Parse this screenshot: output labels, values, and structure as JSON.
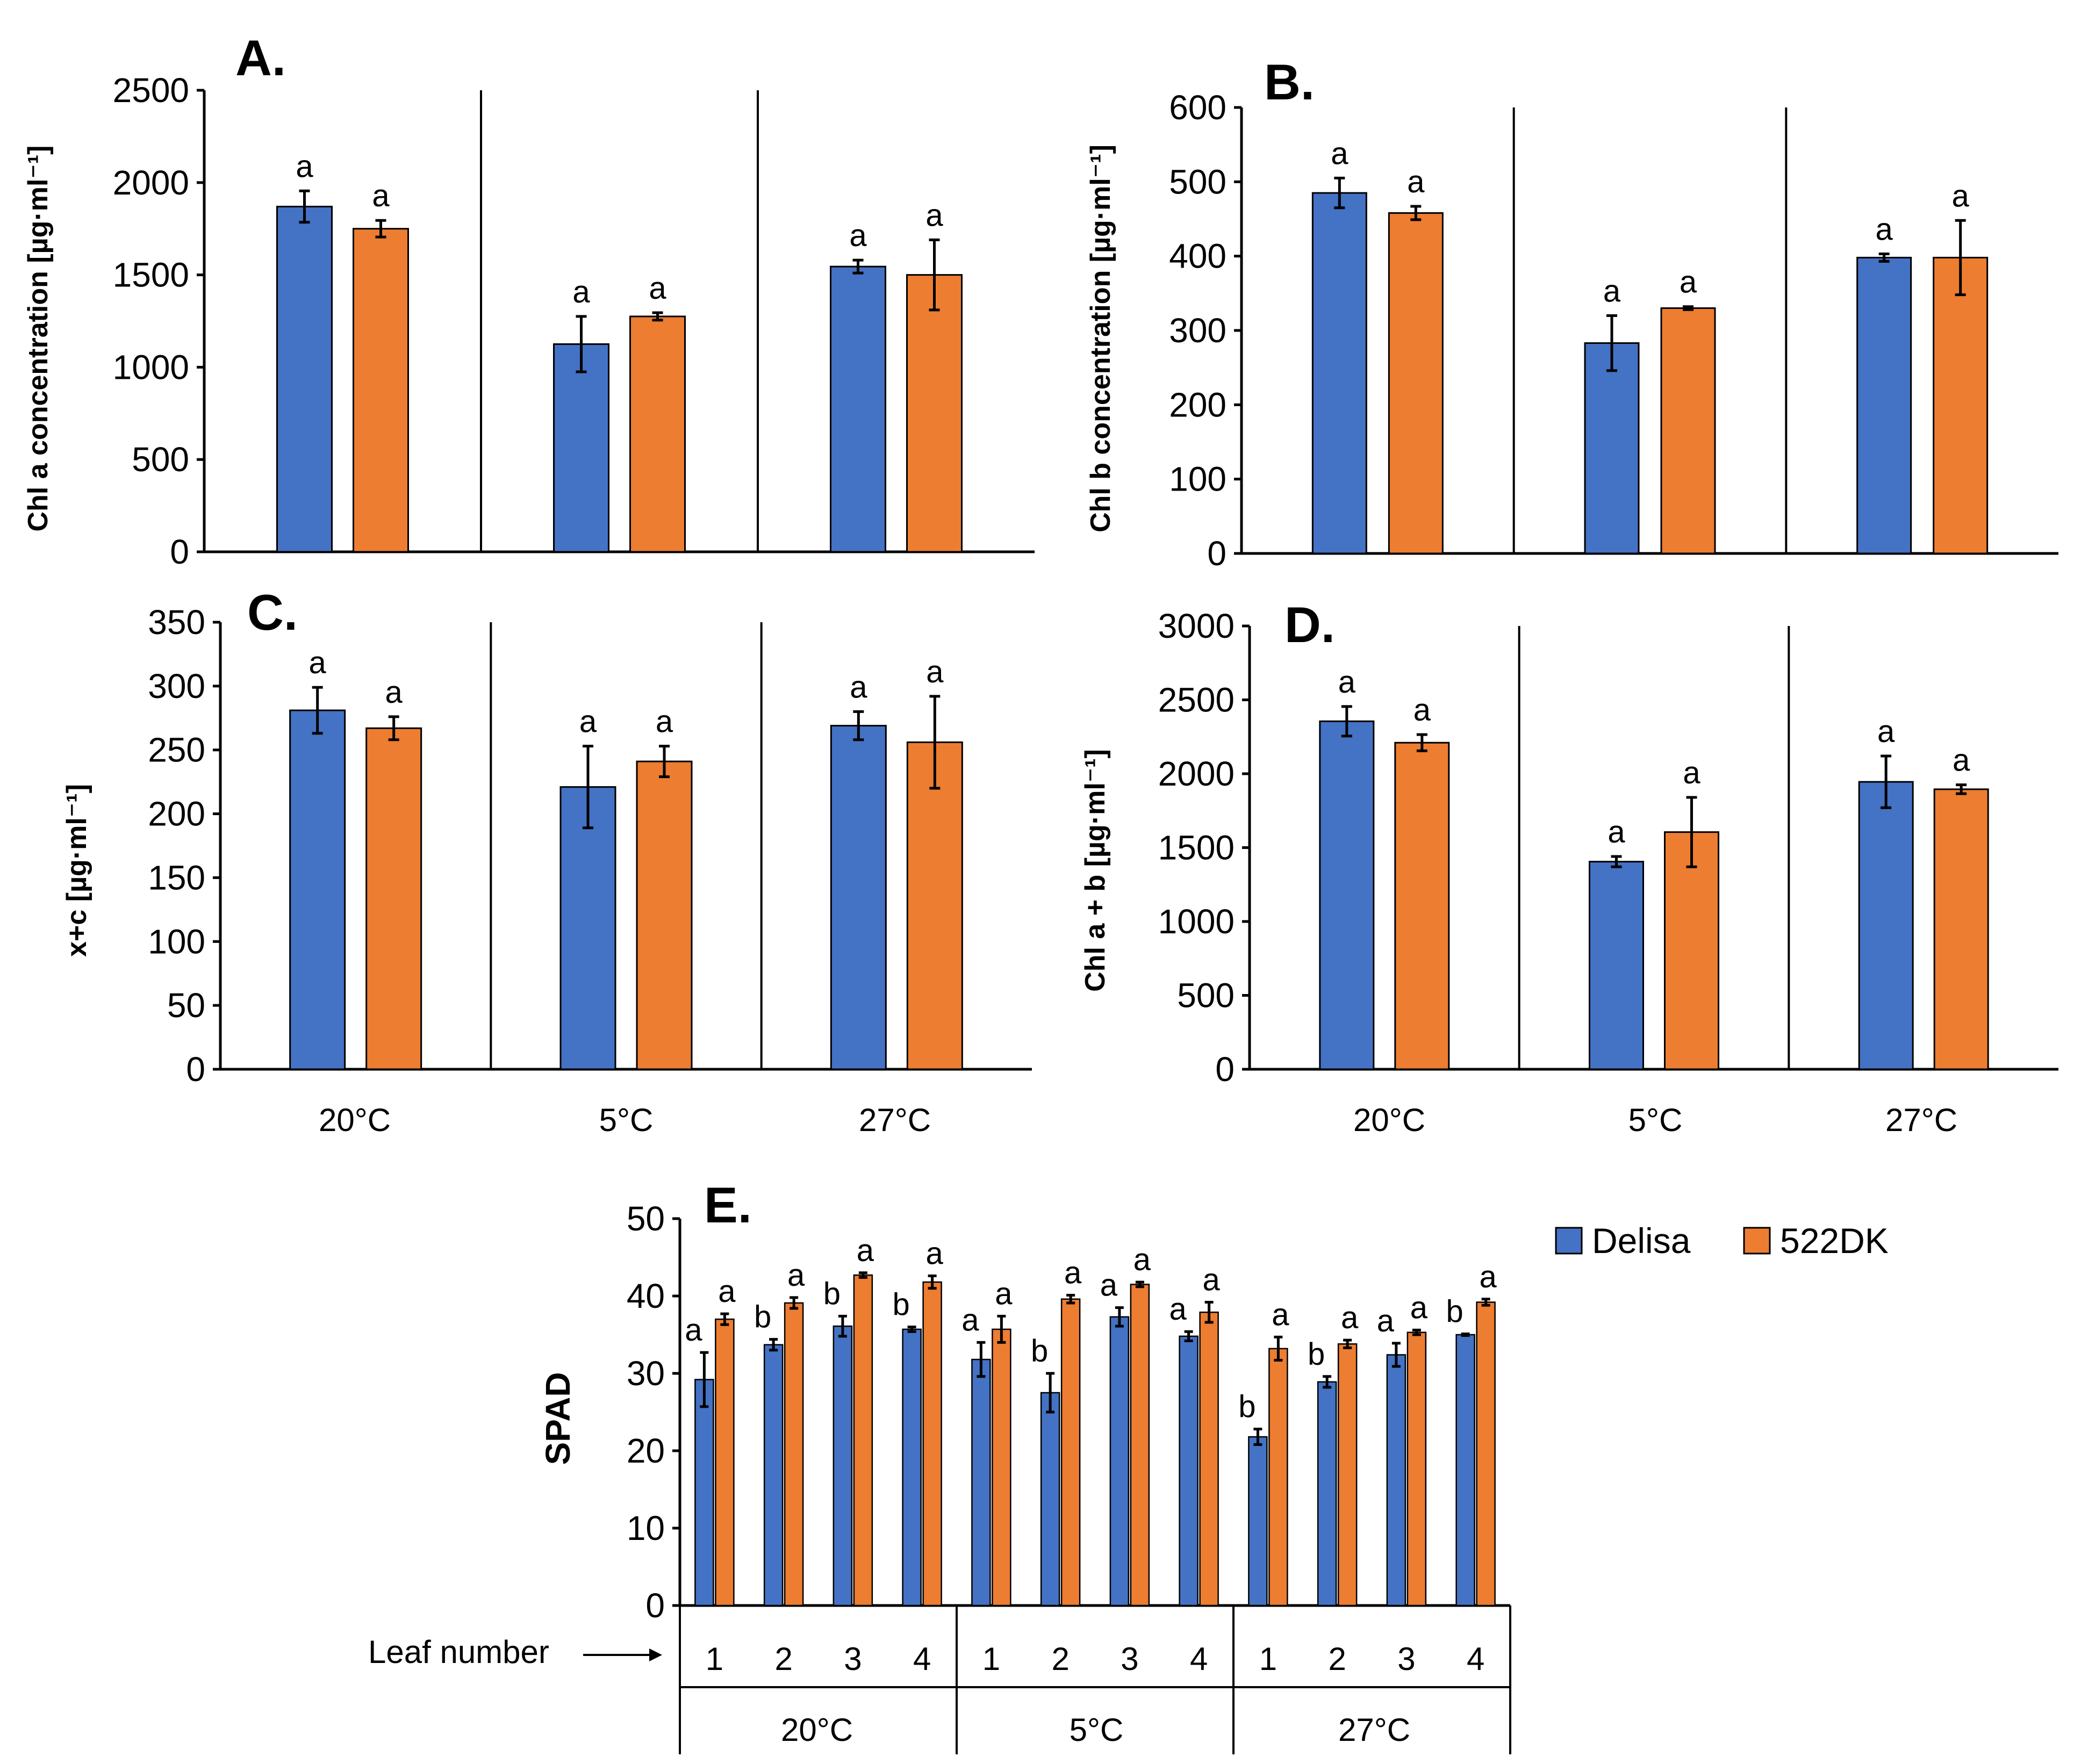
{
  "colors": {
    "delisa": "#4472C4",
    "dk522": "#ED7D31"
  },
  "legend": {
    "series": [
      "Delisa",
      "522DK"
    ]
  },
  "temps": [
    "20°C",
    "5°C",
    "27°C"
  ],
  "e_extra": {
    "leaf_caption": "Leaf number",
    "leaves": [
      "1",
      "2",
      "3",
      "4"
    ]
  },
  "chart_data": [
    {
      "id": "A",
      "label": "A.",
      "type": "bar",
      "ylabel": "Chl a concentration [µg·ml⁻¹]",
      "ylim": [
        0,
        2500
      ],
      "yticks": [
        0,
        500,
        1000,
        1500,
        2000,
        2500
      ],
      "categories": [
        "20°C",
        "5°C",
        "27°C"
      ],
      "series": [
        {
          "name": "Delisa",
          "values": [
            1870,
            1125,
            1545
          ],
          "errors": [
            85,
            150,
            35
          ],
          "letters": [
            "a",
            "a",
            "a"
          ]
        },
        {
          "name": "522DK",
          "values": [
            1750,
            1275,
            1500
          ],
          "errors": [
            45,
            20,
            190
          ],
          "letters": [
            "a",
            "a",
            "a"
          ]
        }
      ]
    },
    {
      "id": "B",
      "label": "B.",
      "type": "bar",
      "ylabel": "Chl b concentration [µg·ml⁻¹]",
      "ylim": [
        0,
        600
      ],
      "yticks": [
        0,
        100,
        200,
        300,
        400,
        500,
        600
      ],
      "categories": [
        "20°C",
        "5°C",
        "27°C"
      ],
      "series": [
        {
          "name": "Delisa",
          "values": [
            485,
            283,
            398
          ],
          "errors": [
            20,
            37,
            5
          ],
          "letters": [
            "a",
            "a",
            "a"
          ]
        },
        {
          "name": "522DK",
          "values": [
            458,
            330,
            398
          ],
          "errors": [
            9,
            2,
            50
          ],
          "letters": [
            "a",
            "a",
            "a"
          ]
        }
      ]
    },
    {
      "id": "C",
      "label": "C.",
      "type": "bar",
      "ylabel": "x+c [µg·ml⁻¹]",
      "ylim": [
        0,
        350
      ],
      "yticks": [
        0,
        50,
        100,
        150,
        200,
        250,
        300,
        350
      ],
      "categories": [
        "20°C",
        "5°C",
        "27°C"
      ],
      "series": [
        {
          "name": "Delisa",
          "values": [
            281,
            221,
            269
          ],
          "errors": [
            18,
            32,
            11
          ],
          "letters": [
            "a",
            "a",
            "a"
          ]
        },
        {
          "name": "522DK",
          "values": [
            267,
            241,
            256
          ],
          "errors": [
            9,
            12,
            36
          ],
          "letters": [
            "a",
            "a",
            "a"
          ]
        }
      ]
    },
    {
      "id": "D",
      "label": "D.",
      "type": "bar",
      "ylabel": "Chl a + b [µg·ml⁻¹]",
      "ylim": [
        0,
        3000
      ],
      "yticks": [
        0,
        500,
        1000,
        1500,
        2000,
        2500,
        3000
      ],
      "categories": [
        "20°C",
        "5°C",
        "27°C"
      ],
      "series": [
        {
          "name": "Delisa",
          "values": [
            2355,
            1405,
            1945
          ],
          "errors": [
            100,
            35,
            175
          ],
          "letters": [
            "a",
            "a",
            "a"
          ]
        },
        {
          "name": "522DK",
          "values": [
            2210,
            1605,
            1895
          ],
          "errors": [
            55,
            235,
            30
          ],
          "letters": [
            "a",
            "a",
            "a"
          ]
        }
      ]
    },
    {
      "id": "E",
      "label": "E.",
      "type": "bar",
      "ylabel": "SPAD",
      "ylim": [
        0,
        50
      ],
      "yticks": [
        0,
        10,
        20,
        30,
        40,
        50
      ],
      "groups": [
        "20°C",
        "5°C",
        "27°C"
      ],
      "categories": [
        "1",
        "2",
        "3",
        "4",
        "1",
        "2",
        "3",
        "4",
        "1",
        "2",
        "3",
        "4"
      ],
      "series": [
        {
          "name": "Delisa",
          "values": [
            29.2,
            33.7,
            36.1,
            35.7,
            31.8,
            27.5,
            37.3,
            34.8,
            21.8,
            28.9,
            32.4,
            35.0
          ],
          "errors": [
            3.5,
            0.7,
            1.3,
            0.3,
            2.2,
            2.5,
            1.2,
            0.6,
            1.0,
            0.7,
            1.5,
            0.1
          ],
          "letters": [
            "a",
            "b",
            "b",
            "b",
            "a",
            "b",
            "a",
            "a",
            "b",
            "b",
            "a",
            "b"
          ]
        },
        {
          "name": "522DK",
          "values": [
            37.0,
            39.1,
            42.7,
            41.8,
            35.7,
            39.6,
            41.5,
            37.9,
            33.2,
            33.8,
            35.3,
            39.2
          ],
          "errors": [
            0.7,
            0.7,
            0.3,
            0.8,
            1.7,
            0.5,
            0.3,
            1.3,
            1.5,
            0.5,
            0.3,
            0.4
          ],
          "letters": [
            "a",
            "a",
            "a",
            "a",
            "a",
            "a",
            "a",
            "a",
            "a",
            "a",
            "a",
            "a"
          ]
        }
      ]
    }
  ]
}
